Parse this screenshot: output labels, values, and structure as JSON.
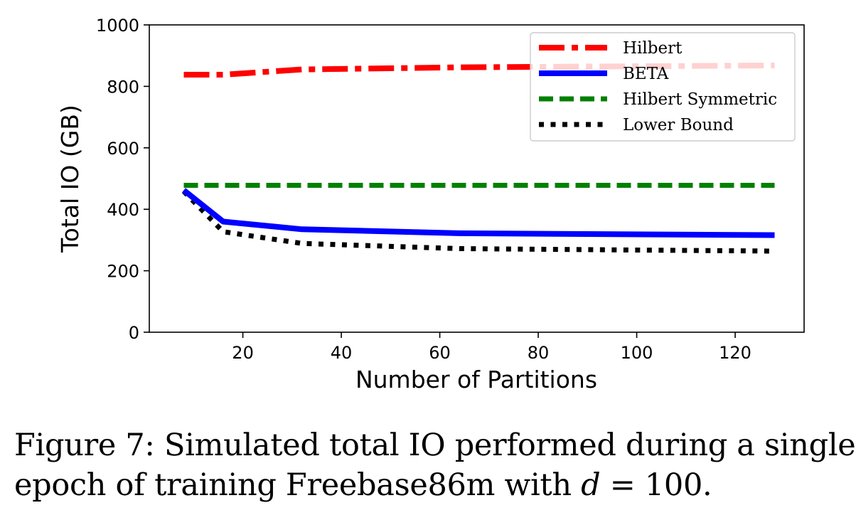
{
  "chart_data": {
    "type": "line",
    "xlabel": "Number of Partitions",
    "ylabel": "Total IO (GB)",
    "xlim": [
      1,
      134
    ],
    "ylim": [
      0,
      1000
    ],
    "x_ticks": [
      20,
      40,
      60,
      80,
      100,
      120
    ],
    "y_ticks": [
      0,
      200,
      400,
      600,
      800,
      1000
    ],
    "grid": false,
    "legend_position": "top-right",
    "series": [
      {
        "name": "Hilbert",
        "style": "dashdot",
        "color": "#ff0000",
        "x": [
          8,
          16,
          32,
          64,
          128
        ],
        "y": [
          838,
          838,
          855,
          862,
          868
        ]
      },
      {
        "name": "BETA",
        "style": "solid",
        "color": "#0000ff",
        "x": [
          8,
          16,
          32,
          64,
          128
        ],
        "y": [
          462,
          360,
          335,
          322,
          316
        ]
      },
      {
        "name": "Hilbert Symmetric",
        "style": "dashed",
        "color": "#008000",
        "x": [
          8,
          16,
          32,
          64,
          128
        ],
        "y": [
          478,
          478,
          478,
          478,
          478
        ]
      },
      {
        "name": "Lower Bound",
        "style": "dotted",
        "color": "#000000",
        "x": [
          8,
          16,
          32,
          64,
          128
        ],
        "y": [
          458,
          327,
          289,
          272,
          264
        ]
      }
    ]
  },
  "caption": {
    "line1": "Figure 7:  Simulated total IO performed during a single",
    "line2_prefix": "epoch of training Freebase86m with ",
    "line2_var": "d",
    "line2_suffix": " = 100."
  }
}
